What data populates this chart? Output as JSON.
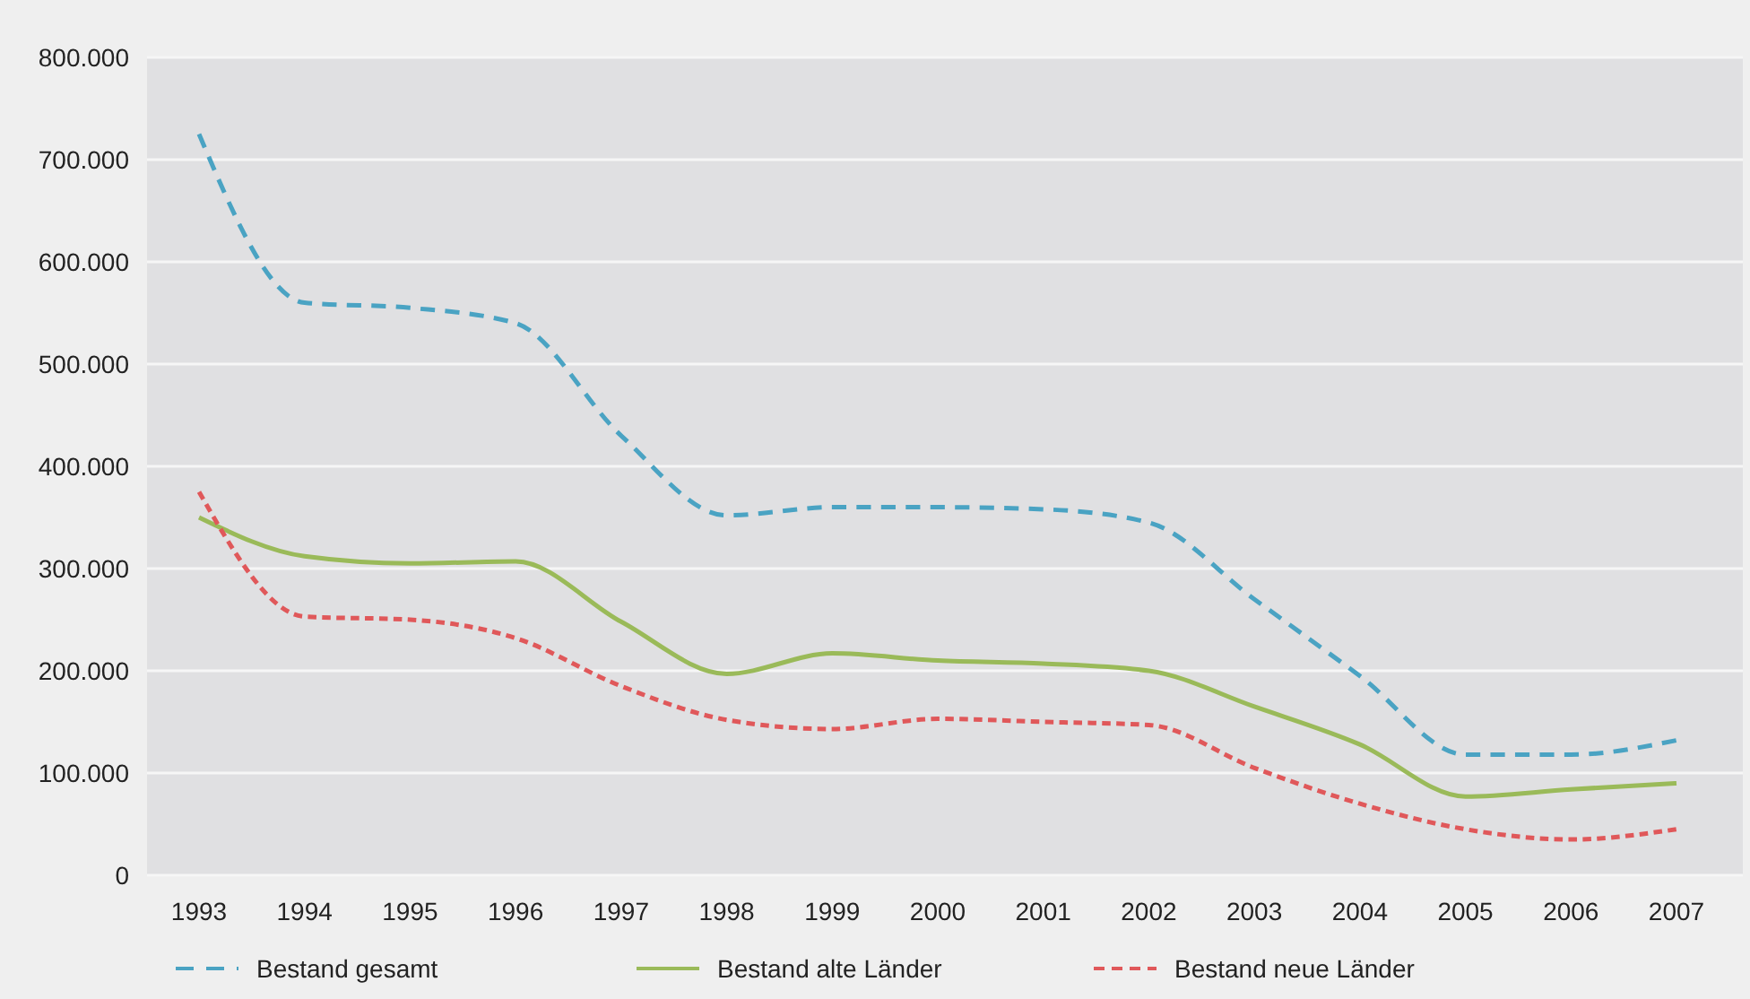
{
  "chart_data": {
    "type": "line",
    "categories": [
      "1993",
      "1994",
      "1995",
      "1996",
      "1997",
      "1998",
      "1999",
      "2000",
      "2001",
      "2002",
      "2003",
      "2004",
      "2005",
      "2006",
      "2007"
    ],
    "series": [
      {
        "name": "Bestand gesamt",
        "color": "#4aa3c3",
        "line_style": "dashed",
        "values": [
          725000,
          560000,
          555000,
          540000,
          430000,
          352000,
          360000,
          360000,
          358000,
          345000,
          270000,
          195000,
          118000,
          118000,
          132000
        ]
      },
      {
        "name": "Bestand alte Länder",
        "color": "#9aba59",
        "line_style": "solid",
        "values": [
          350000,
          312000,
          305000,
          307000,
          248000,
          197000,
          217000,
          210000,
          207000,
          200000,
          165000,
          128000,
          77000,
          84000,
          90000
        ]
      },
      {
        "name": "Bestand neue Länder",
        "color": "#e0585a",
        "line_style": "dotted",
        "values": [
          375000,
          253000,
          250000,
          232000,
          185000,
          152000,
          143000,
          153000,
          150000,
          147000,
          105000,
          70000,
          45000,
          35000,
          45000
        ]
      }
    ],
    "ylim": [
      0,
      800000
    ],
    "yticks": [
      {
        "value": 0,
        "label": "0"
      },
      {
        "value": 100000,
        "label": "100.000"
      },
      {
        "value": 200000,
        "label": "200.000"
      },
      {
        "value": 300000,
        "label": "300.000"
      },
      {
        "value": 400000,
        "label": "400.000"
      },
      {
        "value": 500000,
        "label": "500.000"
      },
      {
        "value": 600000,
        "label": "600.000"
      },
      {
        "value": 700000,
        "label": "700.000"
      },
      {
        "value": 800000,
        "label": "800.000"
      }
    ],
    "grid": "y",
    "legend": "bottom",
    "marker": "none"
  }
}
